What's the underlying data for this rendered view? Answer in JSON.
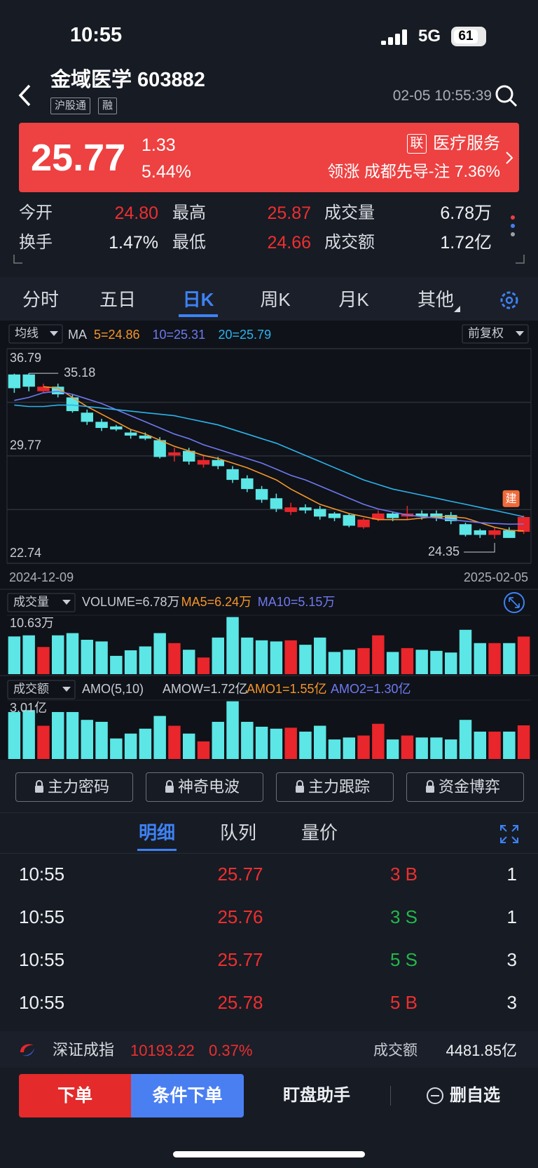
{
  "status_bar": {
    "time": "10:55",
    "network": "5G",
    "battery": "61"
  },
  "header": {
    "title": "金域医学 603882",
    "tags": [
      "沪股通",
      "融"
    ],
    "datetime": "02-05 10:55:39"
  },
  "quote": {
    "price": "25.77",
    "change": "1.33",
    "change_pct": "5.44%",
    "sector_badge": "联",
    "sector": "医疗服务",
    "leader": "领涨 成都先导-注 7.36%"
  },
  "stats": [
    [
      {
        "label": "今开",
        "value": "24.80"
      },
      {
        "label": "最高",
        "value": "25.87"
      },
      {
        "label": "成交量",
        "value": "6.78万"
      }
    ],
    [
      {
        "label": "换手",
        "value": "1.47%"
      },
      {
        "label": "最低",
        "value": "24.66"
      },
      {
        "label": "成交额",
        "value": "1.72亿"
      }
    ]
  ],
  "tabs": {
    "items": [
      "分时",
      "五日",
      "日K",
      "周K",
      "月K",
      "其他"
    ],
    "active": 2
  },
  "chart_data": [
    {
      "type": "candlestick",
      "indicator_button": "均线",
      "ma_label": "MA",
      "adjust_button": "前复权",
      "up_color": "#e8262b",
      "down_color": "#5ce6e6",
      "categories": [
        "2024-12-09",
        null,
        null,
        null,
        null,
        null,
        null,
        null,
        null,
        null,
        null,
        null,
        null,
        null,
        null,
        null,
        null,
        null,
        null,
        null,
        null,
        null,
        null,
        null,
        null,
        null,
        null,
        null,
        null,
        null,
        null,
        null,
        null,
        null,
        null,
        "2025-02-05"
      ],
      "open": [
        35.1,
        35.1,
        34.0,
        34.3,
        33.6,
        32.6,
        32.0,
        31.7,
        31.3,
        31.1,
        30.8,
        29.8,
        30.1,
        29.2,
        29.5,
        28.9,
        28.3,
        27.6,
        27.0,
        26.1,
        26.4,
        26.3,
        26.0,
        25.9,
        25.1,
        25.6,
        26.0,
        25.8,
        26.0,
        26.0,
        25.9,
        25.3,
        24.9,
        24.6,
        24.9,
        24.8
      ],
      "high": [
        35.15,
        35.18,
        34.5,
        34.5,
        33.8,
        32.8,
        32.2,
        31.8,
        31.5,
        31.3,
        31.0,
        30.3,
        30.3,
        29.8,
        29.7,
        29.1,
        28.5,
        27.8,
        27.3,
        26.7,
        26.6,
        26.5,
        26.1,
        26.0,
        25.7,
        26.2,
        26.1,
        26.5,
        26.2,
        26.2,
        26.1,
        25.4,
        25.0,
        25.1,
        25.1,
        25.87
      ],
      "low": [
        33.9,
        34.0,
        33.9,
        33.6,
        32.6,
        31.8,
        31.4,
        31.4,
        30.9,
        30.8,
        29.6,
        29.4,
        29.2,
        29.0,
        28.9,
        28.0,
        27.4,
        26.7,
        26.1,
        25.9,
        26.0,
        25.6,
        25.5,
        25.1,
        25.0,
        25.5,
        25.5,
        25.6,
        25.6,
        25.5,
        25.3,
        24.5,
        24.4,
        24.35,
        24.4,
        24.66
      ],
      "close": [
        34.2,
        34.3,
        34.3,
        33.8,
        32.7,
        32.0,
        31.6,
        31.5,
        31.1,
        30.9,
        29.7,
        30.0,
        29.4,
        29.5,
        29.1,
        28.2,
        27.6,
        26.9,
        26.3,
        26.4,
        26.2,
        25.8,
        25.7,
        25.2,
        25.6,
        26.0,
        25.7,
        26.0,
        25.8,
        25.7,
        25.5,
        24.6,
        24.6,
        24.9,
        24.4,
        25.77
      ],
      "series": [
        {
          "name": "5=24.86",
          "color": "#f5952a",
          "values": [
            null,
            null,
            34.3,
            34.2,
            33.6,
            33.0,
            32.5,
            32.0,
            31.5,
            31.2,
            30.8,
            30.4,
            30.1,
            29.8,
            29.6,
            29.3,
            29.0,
            28.6,
            28.2,
            27.6,
            27.1,
            26.6,
            26.3,
            26.0,
            25.8,
            25.6,
            25.6,
            25.6,
            25.7,
            25.8,
            25.8,
            25.7,
            25.4,
            25.1,
            24.9,
            24.86
          ]
        },
        {
          "name": "10=25.31",
          "color": "#6f79f0",
          "values": [
            33.4,
            33.6,
            33.9,
            34.0,
            33.8,
            33.5,
            33.2,
            32.8,
            32.4,
            32.0,
            31.6,
            31.2,
            30.9,
            30.5,
            30.2,
            29.9,
            29.6,
            29.3,
            28.9,
            28.5,
            28.2,
            27.8,
            27.4,
            27.0,
            26.6,
            26.3,
            26.1,
            25.9,
            25.8,
            25.7,
            25.6,
            25.5,
            25.4,
            25.35,
            25.3,
            25.31
          ]
        },
        {
          "name": "20=25.79",
          "color": "#2bb3ee",
          "values": [
            33.1,
            33.0,
            33.0,
            33.1,
            33.1,
            33.0,
            32.9,
            32.8,
            32.7,
            32.6,
            32.5,
            32.4,
            32.2,
            32.0,
            31.8,
            31.5,
            31.2,
            30.9,
            30.6,
            30.2,
            29.8,
            29.4,
            29.0,
            28.6,
            28.2,
            27.9,
            27.6,
            27.4,
            27.2,
            27.0,
            26.8,
            26.6,
            26.4,
            26.2,
            26.0,
            25.79
          ]
        }
      ],
      "ylim": [
        22.74,
        36.79
      ],
      "yticks": [
        36.79,
        {
          "value": 33.28,
          "label": null
        },
        29.77,
        {
          "value": 26.26,
          "label": null
        },
        22.74
      ],
      "annotations": [
        "35.18",
        "24.35"
      ],
      "badge": "建"
    },
    {
      "type": "bar",
      "indicator_button": "成交量",
      "indicator": "VOLUME=6.78万",
      "legend": [
        {
          "name": "MA5=6.24万",
          "color": "#f5952a"
        },
        {
          "name": "MA10=5.15万",
          "color": "#6f79f0"
        }
      ],
      "values": [
        6.8,
        7.0,
        4.9,
        7.0,
        7.4,
        6.2,
        5.9,
        3.3,
        4.3,
        5.0,
        7.4,
        5.6,
        4.4,
        3.0,
        6.6,
        10.3,
        6.6,
        6.1,
        5.9,
        6.1,
        5.3,
        6.6,
        4.0,
        4.4,
        4.7,
        7.0,
        4.0,
        4.7,
        4.4,
        4.2,
        3.9,
        8.0,
        5.6,
        5.6,
        5.6,
        6.78
      ],
      "ylim": [
        0,
        10.63
      ],
      "yticks": [
        {
          "value": 10.63,
          "label": "10.63万"
        }
      ]
    },
    {
      "type": "bar",
      "indicator_button": "成交额",
      "indicator_params": "AMO(5,10)",
      "indicator": "AMOW=1.72亿",
      "legend": [
        {
          "name": "AMO1=1.55亿",
          "color": "#f5952a"
        },
        {
          "name": "AMO2=1.30亿",
          "color": "#6f79f0"
        }
      ],
      "values": [
        2.4,
        2.5,
        1.7,
        2.4,
        2.4,
        2.0,
        1.9,
        1.05,
        1.3,
        1.55,
        2.2,
        1.7,
        1.3,
        0.9,
        1.9,
        2.95,
        1.9,
        1.65,
        1.55,
        1.6,
        1.4,
        1.7,
        1.0,
        1.1,
        1.2,
        1.8,
        1.0,
        1.2,
        1.1,
        1.1,
        1.0,
        2.0,
        1.4,
        1.4,
        1.4,
        1.72
      ],
      "ylim": [
        0,
        3.01
      ],
      "yticks": [
        {
          "value": 3.01,
          "label": "3.01亿"
        }
      ]
    }
  ],
  "feature_buttons": [
    "主力密码",
    "神奇电波",
    "主力跟踪",
    "资金博弈"
  ],
  "detail_tabs": {
    "items": [
      "明细",
      "队列",
      "量价"
    ],
    "active": 0
  },
  "trades": [
    [
      "10:55",
      "25.77",
      "3 B",
      "1"
    ],
    [
      "10:55",
      "25.76",
      "3 S",
      "1"
    ],
    [
      "10:55",
      "25.77",
      "5 S",
      "3"
    ],
    [
      "10:55",
      "25.78",
      "5 B",
      "3"
    ]
  ],
  "index_bar": {
    "name": "深证成指",
    "value": "10193.22",
    "pct": "0.37%",
    "amount_label": "成交额",
    "amount": "4481.85亿"
  },
  "bottom_bar": {
    "order": "下单",
    "conditional": "条件下单",
    "assistant": "盯盘助手",
    "remove": "删自选"
  }
}
